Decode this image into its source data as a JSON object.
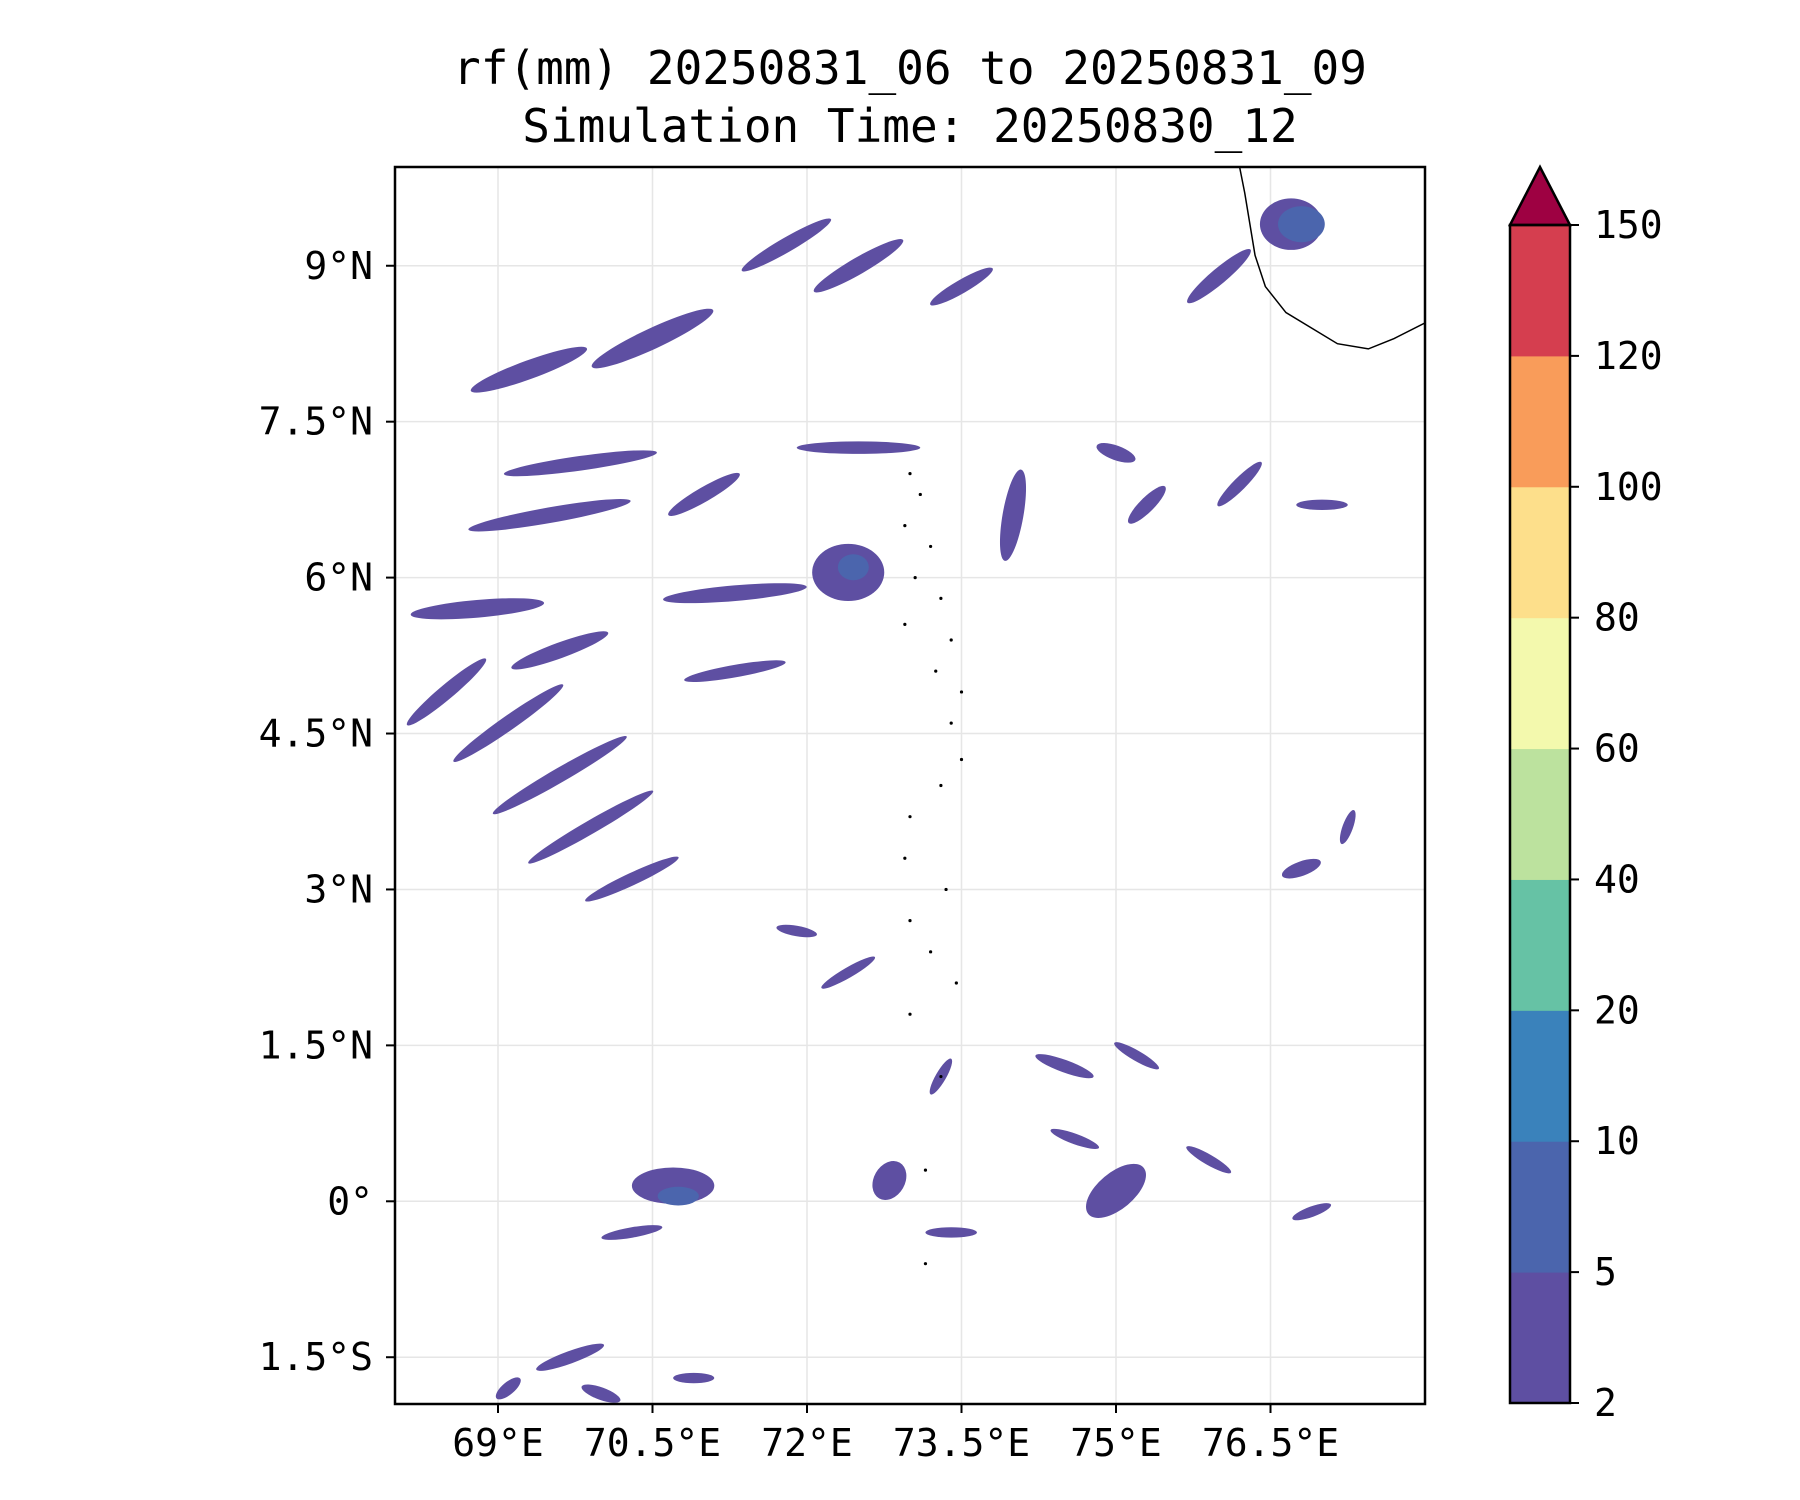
{
  "title": "rf(mm) 20250831_06 to 20250831_09",
  "subtitle": "Simulation Time: 20250830_12",
  "chart_data": {
    "type": "heatmap",
    "variable": "rf(mm)",
    "x_axis": {
      "ticks": [
        {
          "value": 69.0,
          "label": "69°E"
        },
        {
          "value": 70.5,
          "label": "70.5°E"
        },
        {
          "value": 72.0,
          "label": "72°E"
        },
        {
          "value": 73.5,
          "label": "73.5°E"
        },
        {
          "value": 75.0,
          "label": "75°E"
        },
        {
          "value": 76.5,
          "label": "76.5°E"
        }
      ],
      "range": [
        68.0,
        78.0
      ]
    },
    "y_axis": {
      "ticks": [
        {
          "value": 9.0,
          "label": "9°N"
        },
        {
          "value": 7.5,
          "label": "7.5°N"
        },
        {
          "value": 6.0,
          "label": "6°N"
        },
        {
          "value": 4.5,
          "label": "4.5°N"
        },
        {
          "value": 3.0,
          "label": "3°N"
        },
        {
          "value": 1.5,
          "label": "1.5°N"
        },
        {
          "value": 0.0,
          "label": "0°"
        },
        {
          "value": -1.5,
          "label": "1.5°S"
        }
      ],
      "range": [
        -1.95,
        9.95
      ]
    },
    "grid": true,
    "colorbar": {
      "placement": "right",
      "extend": "max",
      "levels": [
        2,
        5,
        10,
        20,
        40,
        60,
        80,
        100,
        120,
        150
      ],
      "colors": [
        "#5e4fa2",
        "#4b65ad",
        "#3a82bb",
        "#66c2a5",
        "#bce29e",
        "#f3f9ad",
        "#fddf8b",
        "#f99c5a",
        "#d53e4f"
      ],
      "extend_color": "#9e0142"
    },
    "rain_cells": [
      {
        "lon": 69.3,
        "lat": 8.0,
        "len": 1.2,
        "wid": 0.18,
        "angle": -20,
        "level": 0
      },
      {
        "lon": 70.5,
        "lat": 8.3,
        "len": 1.3,
        "wid": 0.2,
        "angle": -25,
        "level": 0
      },
      {
        "lon": 69.8,
        "lat": 7.1,
        "len": 1.5,
        "wid": 0.14,
        "angle": -8,
        "level": 0
      },
      {
        "lon": 71.0,
        "lat": 6.8,
        "len": 0.8,
        "wid": 0.14,
        "angle": -30,
        "level": 0
      },
      {
        "lon": 69.5,
        "lat": 6.6,
        "len": 1.6,
        "wid": 0.15,
        "angle": -10,
        "level": 0
      },
      {
        "lon": 72.5,
        "lat": 7.25,
        "len": 1.2,
        "wid": 0.12,
        "angle": 0,
        "level": 0
      },
      {
        "lon": 72.4,
        "lat": 6.05,
        "len": 0.7,
        "wid": 0.55,
        "angle": 0,
        "level": 0
      },
      {
        "lon": 72.45,
        "lat": 6.1,
        "len": 0.3,
        "wid": 0.25,
        "angle": 0,
        "level": 1
      },
      {
        "lon": 71.3,
        "lat": 5.85,
        "len": 1.4,
        "wid": 0.15,
        "angle": -5,
        "level": 0
      },
      {
        "lon": 68.8,
        "lat": 5.7,
        "len": 1.3,
        "wid": 0.17,
        "angle": -5,
        "level": 0
      },
      {
        "lon": 69.6,
        "lat": 5.3,
        "len": 1.0,
        "wid": 0.15,
        "angle": -20,
        "level": 0
      },
      {
        "lon": 68.5,
        "lat": 4.9,
        "len": 1.0,
        "wid": 0.14,
        "angle": -40,
        "level": 0
      },
      {
        "lon": 69.1,
        "lat": 4.6,
        "len": 1.3,
        "wid": 0.14,
        "angle": -35,
        "level": 0
      },
      {
        "lon": 69.6,
        "lat": 4.1,
        "len": 1.5,
        "wid": 0.14,
        "angle": -30,
        "level": 0
      },
      {
        "lon": 69.9,
        "lat": 3.6,
        "len": 1.4,
        "wid": 0.13,
        "angle": -30,
        "level": 0
      },
      {
        "lon": 70.3,
        "lat": 3.1,
        "len": 1.0,
        "wid": 0.12,
        "angle": -25,
        "level": 0
      },
      {
        "lon": 71.3,
        "lat": 5.1,
        "len": 1.0,
        "wid": 0.12,
        "angle": -10,
        "level": 0
      },
      {
        "lon": 74.0,
        "lat": 6.6,
        "len": 0.9,
        "wid": 0.2,
        "angle": -80,
        "level": 0
      },
      {
        "lon": 75.3,
        "lat": 6.7,
        "len": 0.5,
        "wid": 0.14,
        "angle": -45,
        "level": 0
      },
      {
        "lon": 75.0,
        "lat": 7.2,
        "len": 0.4,
        "wid": 0.14,
        "angle": 20,
        "level": 0
      },
      {
        "lon": 76.2,
        "lat": 6.9,
        "len": 0.6,
        "wid": 0.12,
        "angle": -45,
        "level": 0
      },
      {
        "lon": 77.0,
        "lat": 6.7,
        "len": 0.5,
        "wid": 0.1,
        "angle": 0,
        "level": 0
      },
      {
        "lon": 72.5,
        "lat": 9.0,
        "len": 1.0,
        "wid": 0.16,
        "angle": -30,
        "level": 0
      },
      {
        "lon": 71.8,
        "lat": 9.2,
        "len": 1.0,
        "wid": 0.14,
        "angle": -30,
        "level": 0
      },
      {
        "lon": 73.5,
        "lat": 8.8,
        "len": 0.7,
        "wid": 0.13,
        "angle": -30,
        "level": 0
      },
      {
        "lon": 76.0,
        "lat": 8.9,
        "len": 0.8,
        "wid": 0.15,
        "angle": -40,
        "level": 0
      },
      {
        "lon": 76.7,
        "lat": 9.4,
        "len": 0.5,
        "wid": 0.6,
        "angle": -90,
        "level": 0
      },
      {
        "lon": 76.8,
        "lat": 9.4,
        "len": 0.35,
        "wid": 0.45,
        "angle": -90,
        "level": 1
      },
      {
        "lon": 76.8,
        "lat": 3.2,
        "len": 0.4,
        "wid": 0.14,
        "angle": -20,
        "level": 0
      },
      {
        "lon": 77.25,
        "lat": 3.6,
        "len": 0.35,
        "wid": 0.1,
        "angle": -70,
        "level": 0
      },
      {
        "lon": 75.2,
        "lat": 1.4,
        "len": 0.5,
        "wid": 0.1,
        "angle": 30,
        "level": 0
      },
      {
        "lon": 74.5,
        "lat": 1.3,
        "len": 0.6,
        "wid": 0.12,
        "angle": 20,
        "level": 0
      },
      {
        "lon": 73.3,
        "lat": 1.2,
        "len": 0.4,
        "wid": 0.1,
        "angle": -60,
        "level": 0
      },
      {
        "lon": 72.4,
        "lat": 2.2,
        "len": 0.6,
        "wid": 0.1,
        "angle": -30,
        "level": 0
      },
      {
        "lon": 71.9,
        "lat": 2.6,
        "len": 0.4,
        "wid": 0.1,
        "angle": 10,
        "level": 0
      },
      {
        "lon": 70.7,
        "lat": 0.15,
        "len": 0.8,
        "wid": 0.35,
        "angle": 0,
        "level": 0
      },
      {
        "lon": 70.75,
        "lat": 0.05,
        "len": 0.4,
        "wid": 0.18,
        "angle": 0,
        "level": 1
      },
      {
        "lon": 75.0,
        "lat": 0.1,
        "len": 0.7,
        "wid": 0.35,
        "angle": -40,
        "level": 0
      },
      {
        "lon": 72.8,
        "lat": 0.2,
        "len": 0.4,
        "wid": 0.3,
        "angle": -60,
        "level": 0
      },
      {
        "lon": 73.4,
        "lat": -0.3,
        "len": 0.5,
        "wid": 0.1,
        "angle": 0,
        "level": 0
      },
      {
        "lon": 74.6,
        "lat": 0.6,
        "len": 0.5,
        "wid": 0.1,
        "angle": 20,
        "level": 0
      },
      {
        "lon": 75.9,
        "lat": 0.4,
        "len": 0.5,
        "wid": 0.1,
        "angle": 30,
        "level": 0
      },
      {
        "lon": 76.9,
        "lat": -0.1,
        "len": 0.4,
        "wid": 0.1,
        "angle": -20,
        "level": 0
      },
      {
        "lon": 70.3,
        "lat": -0.3,
        "len": 0.6,
        "wid": 0.1,
        "angle": -10,
        "level": 0
      },
      {
        "lon": 69.7,
        "lat": -1.5,
        "len": 0.7,
        "wid": 0.12,
        "angle": -20,
        "level": 0
      },
      {
        "lon": 70.0,
        "lat": -1.85,
        "len": 0.4,
        "wid": 0.12,
        "angle": 20,
        "level": 0
      },
      {
        "lon": 70.9,
        "lat": -1.7,
        "len": 0.4,
        "wid": 0.1,
        "angle": 0,
        "level": 0
      },
      {
        "lon": 69.1,
        "lat": -1.8,
        "len": 0.3,
        "wid": 0.12,
        "angle": -40,
        "level": 0
      },
      {
        "lon": 73.0,
        "lat": 4.1,
        "len": 0.0,
        "wid": 0.0,
        "angle": 0,
        "level": 0
      }
    ],
    "coastline": [
      [
        76.2,
        9.95
      ],
      [
        76.25,
        9.7
      ],
      [
        76.3,
        9.4
      ],
      [
        76.35,
        9.1
      ],
      [
        76.45,
        8.8
      ],
      [
        76.65,
        8.55
      ],
      [
        76.9,
        8.4
      ],
      [
        77.15,
        8.25
      ],
      [
        77.45,
        8.2
      ],
      [
        77.7,
        8.3
      ],
      [
        78.0,
        8.45
      ]
    ],
    "islands": [
      [
        73.0,
        7.0
      ],
      [
        73.1,
        6.8
      ],
      [
        72.95,
        6.5
      ],
      [
        73.2,
        6.3
      ],
      [
        73.05,
        6.0
      ],
      [
        73.3,
        5.8
      ],
      [
        72.95,
        5.55
      ],
      [
        73.4,
        5.4
      ],
      [
        73.25,
        5.1
      ],
      [
        73.5,
        4.9
      ],
      [
        73.4,
        4.6
      ],
      [
        73.5,
        4.25
      ],
      [
        73.3,
        4.0
      ],
      [
        73.0,
        3.7
      ],
      [
        72.95,
        3.3
      ],
      [
        73.35,
        3.0
      ],
      [
        73.0,
        2.7
      ],
      [
        73.2,
        2.4
      ],
      [
        73.45,
        2.1
      ],
      [
        73.0,
        1.8
      ],
      [
        73.3,
        1.2
      ],
      [
        73.15,
        0.3
      ],
      [
        73.15,
        -0.6
      ]
    ]
  }
}
